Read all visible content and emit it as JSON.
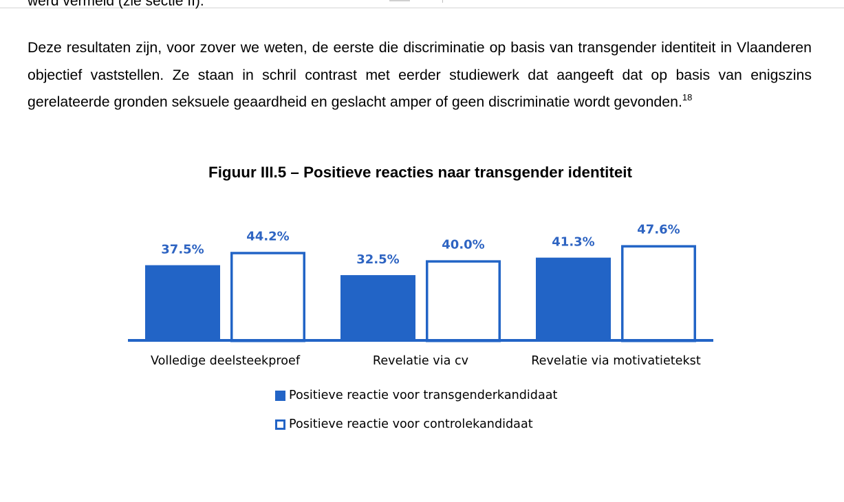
{
  "document": {
    "cut_line": "werd vermeld (zie sectie II).",
    "paragraph": "Deze resultaten zijn, voor zover we weten, de eerste die discriminatie op basis van transgender identiteit in Vlaanderen objectief vaststellen. Ze staan in schril contrast met eerder studiewerk dat aangeeft dat op basis van enigszins gerelateerde gronden seksuele geaardheid en geslacht amper of geen discriminatie wordt gevonden.",
    "footnote_ref": "18",
    "figure_title": "Figuur III.5 – Positieve reacties naar transgender identiteit"
  },
  "chart_data": {
    "type": "bar",
    "title": "Figuur III.5 – Positieve reacties naar transgender identiteit",
    "categories": [
      "Volledige deelsteekproef",
      "Revelatie via cv",
      "Revelatie via motivatietekst"
    ],
    "series": [
      {
        "name": "Positieve reactie voor transgenderkandidaat",
        "values": [
          37.5,
          32.5,
          41.3
        ],
        "labels": [
          "37.5%",
          "32.5%",
          "41.3%"
        ],
        "style": "filled"
      },
      {
        "name": "Positieve reactie voor controlekandidaat",
        "values": [
          44.2,
          40.0,
          47.6
        ],
        "labels": [
          "44.2%",
          "40.0%",
          "47.6%"
        ],
        "style": "outline"
      }
    ],
    "xlabel": "",
    "ylabel": "",
    "grid": false,
    "legend_position": "bottom",
    "colors": {
      "bar": "#2264c6",
      "label": "#2e64c2",
      "axis": "#2264c6",
      "text": "#000000"
    }
  }
}
